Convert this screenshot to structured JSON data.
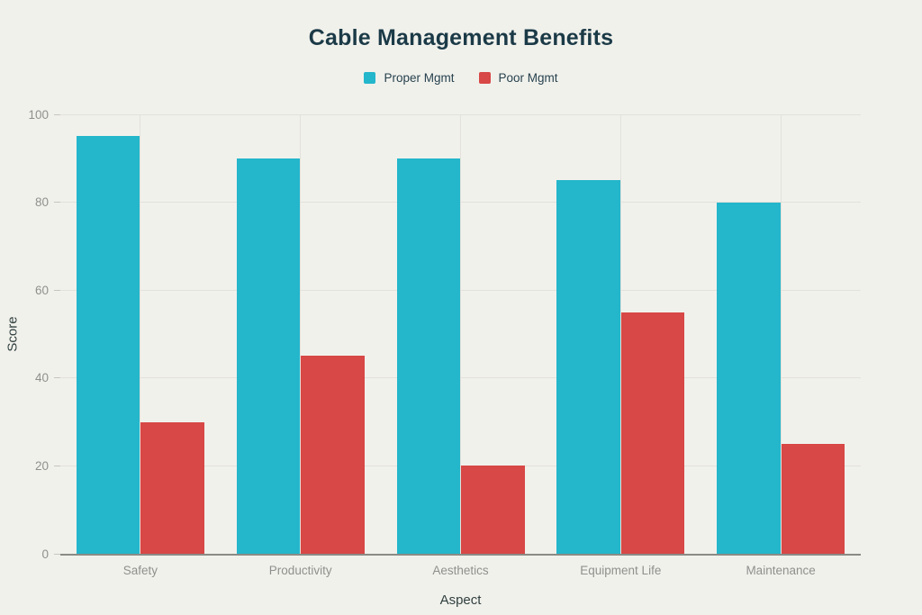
{
  "chart_data": {
    "type": "bar",
    "title": "Cable Management Benefits",
    "xlabel": "Aspect",
    "ylabel": "Score",
    "categories": [
      "Safety",
      "Productivity",
      "Aesthetics",
      "Equipment Life",
      "Maintenance"
    ],
    "series": [
      {
        "name": "Proper Mgmt",
        "color": "#24b6cb",
        "values": [
          95,
          90,
          90,
          85,
          80
        ]
      },
      {
        "name": "Poor Mgmt",
        "color": "#d74846",
        "values": [
          30,
          45,
          20,
          55,
          25
        ]
      }
    ],
    "ylim": [
      0,
      100
    ],
    "y_ticks": [
      0,
      20,
      40,
      60,
      80,
      100
    ],
    "grid": true,
    "legend_position": "top-center"
  },
  "colors": {
    "background": "#f1f1ec",
    "gridline": "#e2e1db",
    "axis_line": "#8b8b86",
    "tick_mark": "#c6c5bf",
    "tick_text": "#8f8f8d",
    "axis_title_text": "#30403f",
    "title_text": "#1b3a47",
    "legend_text": "#27424e"
  }
}
